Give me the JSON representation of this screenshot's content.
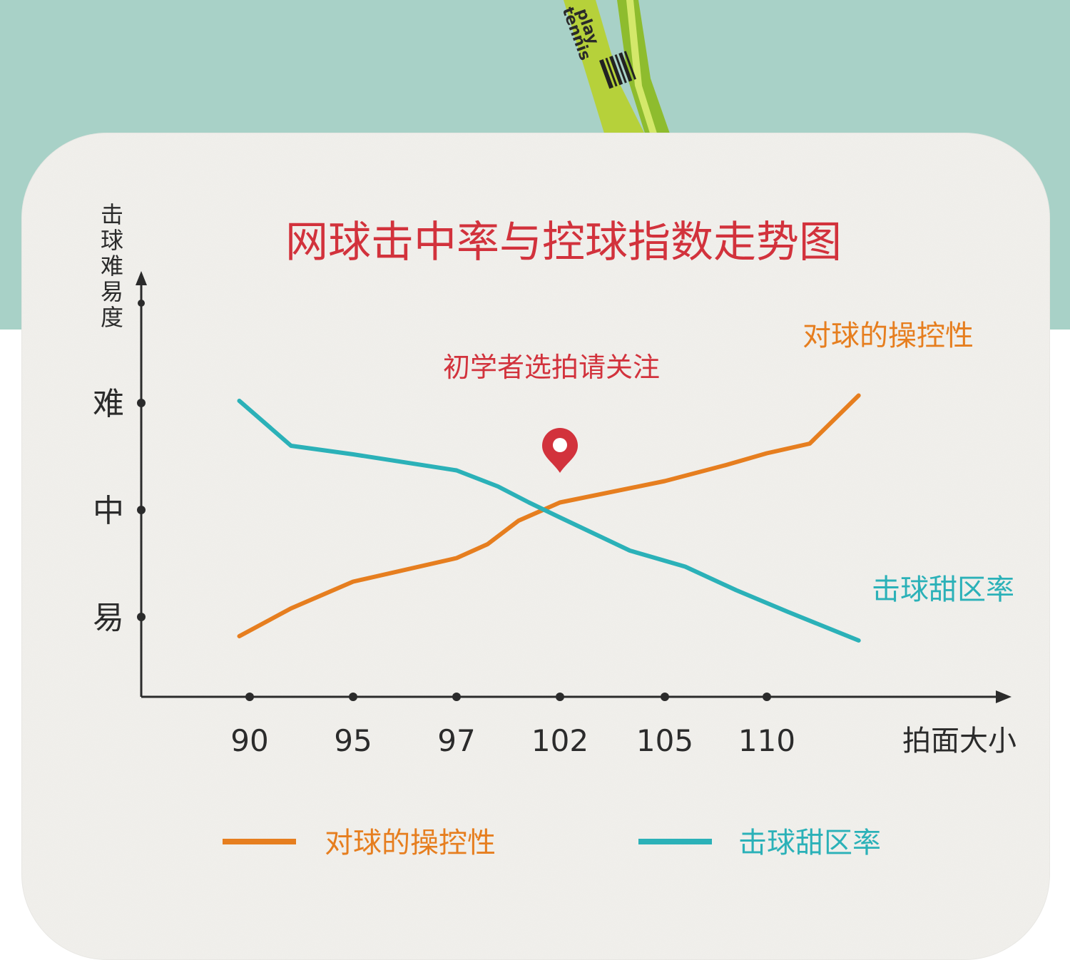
{
  "colors": {
    "background_band": "#a8d1c7",
    "paper": "#f1f0ec",
    "title": "#d2323c",
    "orange": "#e67e1f",
    "teal": "#2bb1b8",
    "axis": "#2b2b2b",
    "racket_green": "#a6c834"
  },
  "racket": {
    "text_1": "play",
    "text_2": "tennis"
  },
  "chart_data": {
    "type": "line",
    "title": "网球击中率与控球指数走势图",
    "annotation": "初学者选拍请关注",
    "annotation_icon": "map-pin-icon",
    "ylabel": "击球难易度",
    "xlabel": "拍面大小",
    "y_ticks": [
      "易",
      "中",
      "难"
    ],
    "x_ticks": [
      "90",
      "95",
      "97",
      "102",
      "105",
      "110"
    ],
    "series": [
      {
        "name": "对球的操控性",
        "color": "#e67e1f",
        "points": [
          [
            89.5,
            0.82
          ],
          [
            92,
            1.08
          ],
          [
            95,
            1.33
          ],
          [
            97,
            1.55
          ],
          [
            98.5,
            1.68
          ],
          [
            100,
            1.9
          ],
          [
            102,
            2.07
          ],
          [
            105,
            2.27
          ],
          [
            108,
            2.42
          ],
          [
            110,
            2.53
          ],
          [
            112.1,
            2.62
          ],
          [
            114.5,
            3.07
          ]
        ]
      },
      {
        "name": "击球甜区率",
        "color": "#2bb1b8",
        "points": [
          [
            89.5,
            3.02
          ],
          [
            92,
            2.6
          ],
          [
            95,
            2.52
          ],
          [
            97,
            2.37
          ],
          [
            99,
            2.22
          ],
          [
            100.5,
            2.07
          ],
          [
            102,
            1.93
          ],
          [
            104,
            1.62
          ],
          [
            106,
            1.47
          ],
          [
            108.5,
            1.25
          ],
          [
            111,
            1.05
          ],
          [
            114.5,
            0.78
          ]
        ]
      }
    ],
    "legend": [
      "对球的操控性",
      "击球甜区率"
    ],
    "legend_position": "bottom",
    "grid": false
  }
}
